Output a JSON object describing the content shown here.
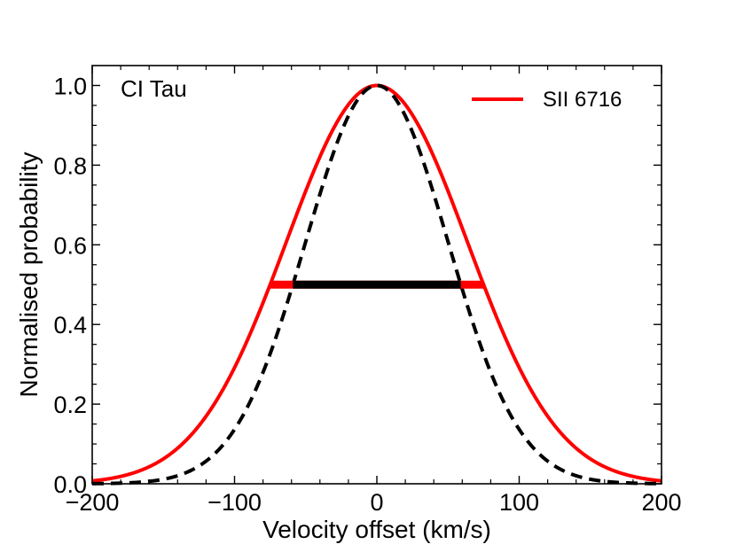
{
  "chart_data": {
    "type": "line",
    "title": "",
    "annotation": "CI Tau",
    "xlabel": "Velocity offset (km/s)",
    "ylabel": "Normalised probability",
    "xlim": [
      -200,
      200
    ],
    "ylim": [
      0.0,
      1.05
    ],
    "x_ticks": [
      -200,
      -100,
      0,
      100,
      200
    ],
    "x_tick_labels": [
      "−200",
      "−100",
      "0",
      "100",
      "200"
    ],
    "y_ticks": [
      0.0,
      0.2,
      0.4,
      0.6,
      0.8,
      1.0
    ],
    "y_tick_labels": [
      "0.0",
      "0.2",
      "0.4",
      "0.6",
      "0.8",
      "1.0"
    ],
    "legend_position": "top-right",
    "grid": false,
    "series": [
      {
        "name": "SII 6716",
        "style": "solid",
        "color": "#ff0000",
        "profile": "gaussian",
        "center": 0,
        "fwhm": 150,
        "x": [
          -200,
          -180,
          -160,
          -140,
          -120,
          -100,
          -80,
          -75,
          -60,
          -40,
          -20,
          0,
          20,
          40,
          60,
          75,
          80,
          100,
          120,
          140,
          160,
          180,
          200
        ],
        "y": [
          0.007,
          0.018,
          0.041,
          0.084,
          0.16,
          0.29,
          0.46,
          0.5,
          0.64,
          0.82,
          0.95,
          1.0,
          0.95,
          0.82,
          0.64,
          0.5,
          0.46,
          0.29,
          0.16,
          0.084,
          0.041,
          0.018,
          0.007
        ]
      },
      {
        "name": "",
        "style": "dashed",
        "color": "#000000",
        "profile": "gaussian",
        "center": 0,
        "fwhm": 118,
        "x": [
          -200,
          -160,
          -120,
          -100,
          -80,
          -59,
          -40,
          -20,
          0,
          20,
          40,
          59,
          80,
          100,
          120,
          160,
          200
        ],
        "y": [
          0.0,
          0.006,
          0.05,
          0.14,
          0.28,
          0.5,
          0.73,
          0.92,
          1.0,
          0.92,
          0.73,
          0.5,
          0.28,
          0.14,
          0.05,
          0.006,
          0.0
        ]
      }
    ],
    "fwhm_bars": [
      {
        "series": "SII 6716",
        "color": "#ff0000",
        "x_start": -75,
        "x_end": 75,
        "y": 0.5
      },
      {
        "series": "dashed",
        "color": "#000000",
        "x_start": -59,
        "x_end": 59,
        "y": 0.5
      }
    ]
  }
}
